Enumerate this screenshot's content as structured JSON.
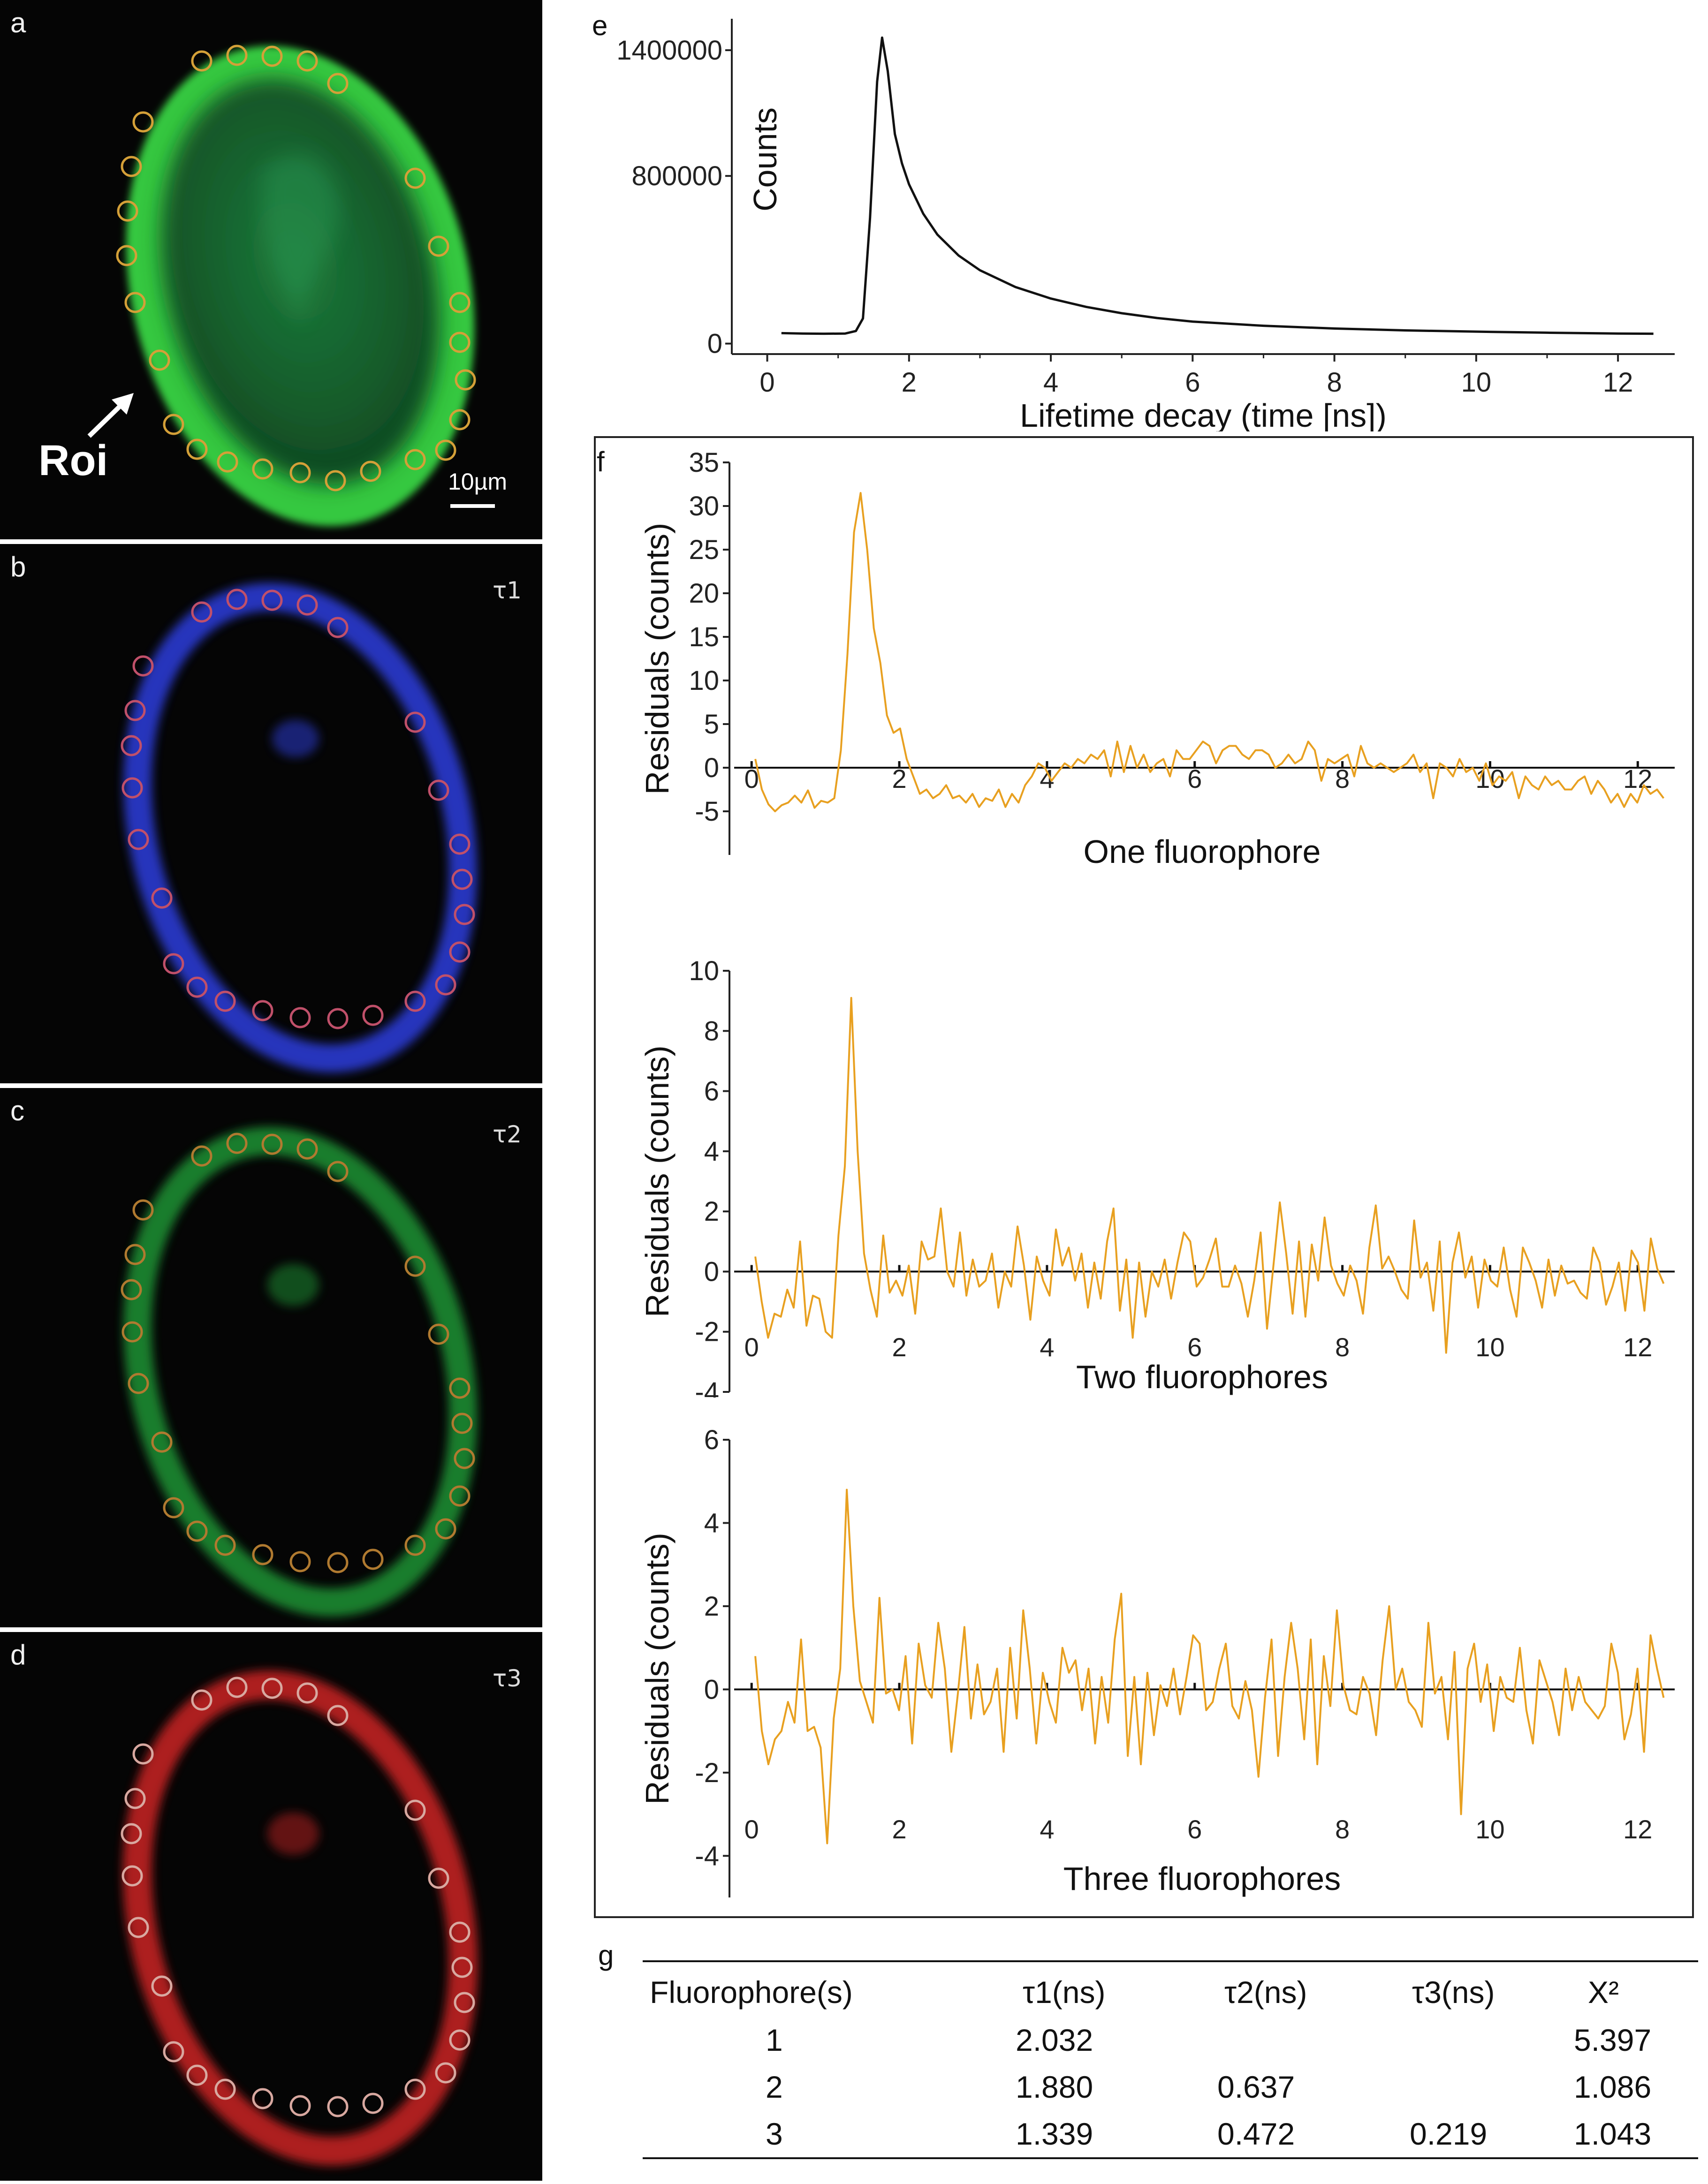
{
  "panels": {
    "a": {
      "label": "a",
      "roi": "Roi",
      "scalebar": "10µm",
      "color": "#3ecf45"
    },
    "b": {
      "label": "b",
      "tau": "τ1",
      "color": "#2a3ad0"
    },
    "c": {
      "label": "c",
      "tau": "τ2",
      "color": "#1f8a30"
    },
    "d": {
      "label": "d",
      "tau": "τ3",
      "color": "#c02020"
    },
    "e": {
      "label": "e"
    },
    "f": {
      "label": "f"
    },
    "g": {
      "label": "g"
    }
  },
  "colors": {
    "decay_line": "#111111",
    "residual_line": "#e8a020",
    "roi_circle": "#d4a038"
  },
  "chart_data": [
    {
      "id": "decay",
      "type": "line",
      "title": "",
      "xlabel": "Lifetime decay (time [ns])",
      "ylabel": "Counts",
      "xlim": [
        -0.5,
        12.8
      ],
      "ylim": [
        -50000,
        1550000
      ],
      "xticks": [
        0,
        2,
        4,
        6,
        8,
        10,
        12
      ],
      "yticks": [
        0,
        800000,
        1400000
      ],
      "ytick_labels": [
        "0",
        "800000",
        "1400000"
      ],
      "x": [
        0.2,
        0.5,
        0.8,
        1.1,
        1.25,
        1.35,
        1.45,
        1.55,
        1.62,
        1.7,
        1.8,
        1.9,
        2.0,
        2.2,
        2.4,
        2.7,
        3.0,
        3.5,
        4.0,
        4.5,
        5.0,
        5.5,
        6.0,
        7.0,
        8.0,
        9.0,
        10.0,
        11.0,
        12.0,
        12.5
      ],
      "y": [
        50000,
        48000,
        47000,
        48000,
        60000,
        120000,
        600000,
        1250000,
        1460000,
        1300000,
        1000000,
        860000,
        760000,
        620000,
        520000,
        420000,
        350000,
        270000,
        215000,
        175000,
        145000,
        122000,
        105000,
        85000,
        72000,
        63000,
        57000,
        52000,
        48000,
        47000
      ]
    },
    {
      "id": "res1",
      "type": "line",
      "title": "",
      "xlabel": "One fluorophore",
      "ylabel": "Residuals (counts)",
      "xlim": [
        -0.3,
        12.5
      ],
      "ylim": [
        -10,
        35
      ],
      "yticks": [
        -5,
        0,
        5,
        10,
        15,
        20,
        25,
        30,
        35
      ],
      "xticks": [
        0,
        2,
        4,
        6,
        8,
        10,
        12
      ],
      "values": [
        1.0,
        -2.5,
        -4.2,
        -5.0,
        -4.3,
        -4.0,
        -3.2,
        -4.0,
        -2.6,
        -4.6,
        -3.8,
        -4.0,
        -3.5,
        2.0,
        13.0,
        27.0,
        31.5,
        25.0,
        16.0,
        12.0,
        6.0,
        4.0,
        4.5,
        1.0,
        -1.0,
        -3.0,
        -2.5,
        -3.5,
        -3.0,
        -2.0,
        -3.5,
        -3.2,
        -4.0,
        -3.0,
        -4.5,
        -3.5,
        -3.8,
        -2.5,
        -4.5,
        -3.0,
        -4.0,
        -2.0,
        -1.0,
        0.5,
        0.0,
        -1.5,
        -0.5,
        0.5,
        0.0,
        1.0,
        0.5,
        1.5,
        1.0,
        2.0,
        -1.0,
        3.0,
        -0.5,
        2.5,
        0.0,
        1.5,
        -0.5,
        0.5,
        1.0,
        -1.0,
        2.0,
        1.0,
        1.0,
        2.0,
        3.0,
        2.5,
        0.5,
        2.0,
        2.5,
        2.5,
        1.5,
        1.0,
        2.0,
        2.0,
        1.5,
        0.0,
        0.5,
        1.5,
        0.5,
        1.0,
        3.0,
        2.0,
        -1.5,
        1.0,
        0.5,
        1.0,
        1.5,
        -1.0,
        2.5,
        0.5,
        0.0,
        0.5,
        0.0,
        -0.5,
        0.0,
        0.5,
        1.5,
        -0.5,
        0.5,
        -3.5,
        0.5,
        0.0,
        -1.0,
        1.0,
        -0.5,
        0.0,
        -1.5,
        0.5,
        -2.0,
        -1.0,
        -1.5,
        -0.5,
        -3.5,
        -1.0,
        -2.0,
        -2.5,
        -1.0,
        -2.0,
        -1.5,
        -2.5,
        -2.5,
        -1.5,
        -1.0,
        -3.0,
        -1.5,
        -2.5,
        -4.0,
        -3.0,
        -4.5,
        -3.0,
        -4.0,
        -2.0,
        -3.0,
        -2.5,
        -3.5
      ]
    },
    {
      "id": "res2",
      "type": "line",
      "title": "",
      "xlabel": "Two fluorophores",
      "ylabel": "Residuals (counts)",
      "xlim": [
        -0.3,
        12.5
      ],
      "ylim": [
        -4,
        10
      ],
      "yticks": [
        -4,
        -2,
        0,
        2,
        4,
        6,
        8,
        10
      ],
      "xticks": [
        0,
        2,
        4,
        6,
        8,
        10,
        12
      ],
      "values": [
        0.5,
        -1.0,
        -2.2,
        -1.4,
        -1.5,
        -0.6,
        -1.2,
        1.0,
        -1.8,
        -0.8,
        -0.9,
        -2.0,
        -2.2,
        1.2,
        3.5,
        9.1,
        4.0,
        0.6,
        -0.6,
        -1.5,
        1.2,
        -0.7,
        -0.3,
        -0.8,
        0.2,
        -1.4,
        1.0,
        0.4,
        0.5,
        2.1,
        0.0,
        -0.5,
        1.3,
        -0.8,
        0.4,
        -0.5,
        -0.3,
        0.6,
        -1.2,
        0.0,
        -0.5,
        1.5,
        0.2,
        -1.6,
        0.5,
        -0.3,
        -0.8,
        1.4,
        0.2,
        0.8,
        -0.3,
        0.6,
        -1.2,
        0.3,
        -0.9,
        1.0,
        2.1,
        -1.3,
        0.4,
        -2.2,
        0.3,
        -1.5,
        0.0,
        -0.5,
        0.4,
        -0.9,
        0.3,
        1.3,
        1.0,
        -0.5,
        -0.2,
        0.4,
        1.1,
        -0.5,
        -0.5,
        0.2,
        -0.4,
        -1.5,
        -0.3,
        1.3,
        -1.9,
        0.2,
        2.3,
        0.6,
        -1.4,
        1.0,
        -1.5,
        0.9,
        -0.3,
        1.8,
        0.2,
        -0.4,
        -0.8,
        0.2,
        -0.3,
        -1.4,
        0.8,
        2.2,
        0.1,
        0.5,
        0.0,
        -0.6,
        -0.9,
        1.7,
        -0.2,
        0.3,
        -1.3,
        1.0,
        -2.7,
        0.3,
        1.3,
        -0.2,
        0.5,
        -1.2,
        0.4,
        -0.3,
        -0.5,
        0.8,
        -0.6,
        -1.5,
        0.8,
        0.3,
        -0.3,
        -1.2,
        0.4,
        -0.8,
        0.2,
        -0.4,
        -0.3,
        -0.7,
        -0.9,
        0.8,
        0.3,
        -1.1,
        -0.5,
        0.3,
        -1.3,
        0.7,
        0.3,
        -1.3,
        1.1,
        0.1,
        -0.4
      ]
    },
    {
      "id": "res3",
      "type": "line",
      "title": "",
      "xlabel": "Three fluorophores",
      "ylabel": "Residuals (counts)",
      "xlim": [
        -0.3,
        12.5
      ],
      "ylim": [
        -5,
        6
      ],
      "yticks": [
        -4,
        -2,
        0,
        2,
        4,
        6
      ],
      "xticks": [
        0,
        2,
        4,
        6,
        8,
        10,
        12
      ],
      "values": [
        0.8,
        -1.0,
        -1.8,
        -1.2,
        -1.0,
        -0.3,
        -0.8,
        1.2,
        -1.0,
        -0.9,
        -1.4,
        -3.7,
        -0.7,
        0.5,
        4.8,
        2.0,
        0.2,
        -0.3,
        -0.8,
        2.2,
        -0.1,
        0.0,
        -0.5,
        0.8,
        -1.3,
        1.1,
        0.1,
        -0.2,
        1.6,
        0.5,
        -1.5,
        -0.1,
        1.5,
        -0.7,
        0.6,
        -0.6,
        -0.3,
        0.5,
        -1.5,
        1.0,
        -0.7,
        1.9,
        0.5,
        -1.3,
        0.4,
        -0.3,
        -0.8,
        1.0,
        0.4,
        0.7,
        -0.5,
        0.5,
        -1.3,
        0.3,
        -0.8,
        1.2,
        2.3,
        -1.6,
        0.3,
        -1.8,
        0.4,
        -1.1,
        0.1,
        -0.4,
        0.5,
        -0.6,
        0.3,
        1.3,
        1.1,
        -0.5,
        -0.3,
        0.5,
        1.1,
        -0.4,
        -0.7,
        0.2,
        -0.5,
        -2.1,
        -0.2,
        1.2,
        -1.6,
        0.3,
        1.6,
        0.5,
        -1.2,
        1.2,
        -1.8,
        0.8,
        -0.4,
        1.9,
        0.1,
        -0.5,
        -0.6,
        0.3,
        -0.1,
        -1.1,
        0.7,
        2.0,
        0.0,
        0.5,
        -0.3,
        -0.5,
        -0.9,
        1.6,
        -0.1,
        0.3,
        -1.2,
        0.9,
        -3.0,
        0.5,
        1.1,
        -0.3,
        0.6,
        -1.0,
        0.3,
        -0.2,
        -0.3,
        1.0,
        -0.5,
        -1.3,
        0.7,
        0.2,
        -0.3,
        -1.1,
        0.5,
        -0.5,
        0.3,
        -0.3,
        -0.5,
        -0.7,
        -0.4,
        1.1,
        0.4,
        -1.2,
        -0.6,
        0.5,
        -1.5,
        1.3,
        0.5,
        -0.2
      ]
    }
  ],
  "table": {
    "headers": [
      "Fluorophore(s)",
      "τ1(ns)",
      "τ2(ns)",
      "τ3(ns)",
      "X²"
    ],
    "rows": [
      [
        "1",
        "2.032",
        "",
        "",
        "5.397"
      ],
      [
        "2",
        "1.880",
        "0.637",
        "",
        "1.086"
      ],
      [
        "3",
        "1.339",
        "0.472",
        "0.219",
        "1.043"
      ]
    ]
  }
}
